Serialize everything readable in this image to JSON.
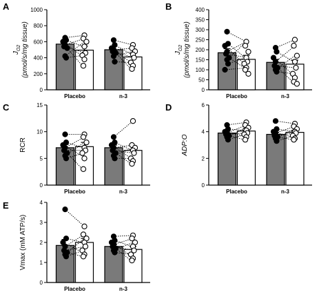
{
  "colors": {
    "bar_filled": "#7a7a7a",
    "bar_open": "#ffffff",
    "dot_filled": "#000000",
    "dot_open": "#ffffff",
    "stroke": "#000000"
  },
  "chart_data": [
    {
      "type": "bar",
      "panel": "A",
      "ylabel_main": "J",
      "ylabel_sub": "O2",
      "ylabel_units": "(pmol/s/mg tissue)",
      "ylabel_italic": true,
      "ylim": [
        0,
        1000
      ],
      "yticks": [
        0,
        200,
        400,
        600,
        800,
        1000
      ],
      "categories": [
        "Placebo",
        "n-3"
      ],
      "groups": [
        {
          "pre": {
            "mean": 570,
            "sem": 60,
            "points": [
              650,
              620,
              600,
              560,
              540,
              520,
              420,
              400
            ]
          },
          "post": {
            "mean": 495,
            "sem": 50,
            "points": [
              680,
              640,
              600,
              540,
              460,
              430,
              380,
              300
            ]
          }
        },
        {
          "pre": {
            "mean": 500,
            "sem": 45,
            "points": [
              620,
              560,
              520,
              500,
              480,
              460,
              420,
              350
            ]
          },
          "post": {
            "mean": 410,
            "sem": 45,
            "points": [
              560,
              520,
              480,
              440,
              400,
              340,
              300,
              260
            ]
          }
        }
      ]
    },
    {
      "type": "bar",
      "panel": "B",
      "ylabel_main": "J",
      "ylabel_sub": "O2",
      "ylabel_units": "(pmol/s/mg tissue)",
      "ylabel_italic": true,
      "ylim": [
        0,
        400
      ],
      "yticks": [
        0,
        50,
        100,
        150,
        200,
        250,
        300,
        350,
        400
      ],
      "categories": [
        "Placebo",
        "n-3"
      ],
      "groups": [
        {
          "pre": {
            "mean": 185,
            "sem": 20,
            "points": [
              290,
              230,
              220,
              190,
              180,
              160,
              150,
              130,
              100
            ]
          },
          "post": {
            "mean": 152,
            "sem": 20,
            "points": [
              240,
              220,
              190,
              160,
              140,
              130,
              110,
              100,
              80
            ]
          }
        },
        {
          "pre": {
            "mean": 137,
            "sem": 15,
            "points": [
              210,
              190,
              160,
              140,
              120,
              110,
              100,
              90
            ]
          },
          "post": {
            "mean": 128,
            "sem": 20,
            "points": [
              250,
              220,
              170,
              140,
              110,
              80,
              60,
              40,
              30
            ]
          }
        }
      ]
    },
    {
      "type": "bar",
      "panel": "C",
      "ylabel_main": "RCR",
      "ylabel_sub": "",
      "ylabel_units": "",
      "ylabel_italic": false,
      "ylim": [
        0,
        15
      ],
      "yticks": [
        0,
        5,
        10,
        15
      ],
      "categories": [
        "Placebo",
        "n-3"
      ],
      "groups": [
        {
          "pre": {
            "mean": 7,
            "sem": 0.6,
            "points": [
              9.5,
              8,
              7.5,
              7,
              6.5,
              6,
              5.5,
              5
            ]
          },
          "post": {
            "mean": 7.2,
            "sem": 0.8,
            "points": [
              9.5,
              9,
              8,
              7,
              6.5,
              6,
              5,
              3
            ]
          }
        },
        {
          "pre": {
            "mean": 7,
            "sem": 0.5,
            "points": [
              9,
              8,
              7.5,
              7,
              6.5,
              6,
              5.5,
              5
            ]
          },
          "post": {
            "mean": 6.5,
            "sem": 0.8,
            "points": [
              12,
              7.5,
              7,
              6.5,
              6,
              5,
              4.5,
              4
            ]
          }
        }
      ]
    },
    {
      "type": "bar",
      "panel": "D",
      "ylabel_main": "ADP:O",
      "ylabel_sub": "",
      "ylabel_units": "",
      "ylabel_italic": true,
      "ylim": [
        0,
        6
      ],
      "yticks": [
        0,
        2,
        4,
        6
      ],
      "categories": [
        "Placebo",
        "n-3"
      ],
      "groups": [
        {
          "pre": {
            "mean": 3.9,
            "sem": 0.15,
            "points": [
              4.5,
              4.2,
              4.0,
              3.9,
              3.8,
              3.7,
              3.6,
              3.4
            ]
          },
          "post": {
            "mean": 4.05,
            "sem": 0.2,
            "points": [
              4.7,
              4.5,
              4.3,
              4.1,
              3.9,
              3.8,
              3.6,
              3.4
            ]
          }
        },
        {
          "pre": {
            "mean": 3.8,
            "sem": 0.15,
            "points": [
              4.8,
              4.2,
              4.0,
              3.9,
              3.7,
              3.6,
              3.5,
              3.3
            ]
          },
          "post": {
            "mean": 3.95,
            "sem": 0.15,
            "points": [
              4.6,
              4.4,
              4.2,
              4.0,
              3.9,
              3.7,
              3.5,
              3.4
            ]
          }
        }
      ]
    },
    {
      "type": "bar",
      "panel": "E",
      "ylabel_main": "Vmax (mM ATP/s)",
      "ylabel_sub": "",
      "ylabel_units": "",
      "ylabel_italic": false,
      "ylim": [
        0,
        4
      ],
      "yticks": [
        0,
        1,
        2,
        3,
        4
      ],
      "categories": [
        "Placebo",
        "n-3"
      ],
      "groups": [
        {
          "pre": {
            "mean": 1.85,
            "sem": 0.3,
            "points": [
              3.65,
              2.2,
              2.0,
              1.8,
              1.6,
              1.5,
              1.4,
              1.3
            ]
          },
          "post": {
            "mean": 2.0,
            "sem": 0.2,
            "points": [
              2.8,
              2.4,
              2.2,
              2.0,
              1.8,
              1.6,
              1.4,
              1.3
            ]
          }
        },
        {
          "pre": {
            "mean": 1.8,
            "sem": 0.1,
            "points": [
              2.3,
              2.1,
              2.0,
              1.9,
              1.8,
              1.7,
              1.6,
              1.5
            ]
          },
          "post": {
            "mean": 1.65,
            "sem": 0.15,
            "points": [
              2.35,
              2.2,
              2.0,
              1.8,
              1.6,
              1.4,
              1.2,
              1.1
            ]
          }
        }
      ]
    }
  ]
}
